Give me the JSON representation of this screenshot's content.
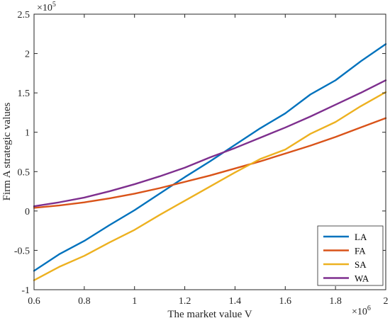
{
  "chart_data": {
    "type": "line",
    "xlabel": "The market value V",
    "ylabel": "Firm A strategic values",
    "x_multiplier": {
      "base": "×10",
      "exponent": "6"
    },
    "y_multiplier": {
      "base": "×10",
      "exponent": "5"
    },
    "xlim": [
      600000,
      2000000
    ],
    "ylim": [
      -100000,
      250000
    ],
    "x_tick_values": [
      600000,
      800000,
      1000000,
      1200000,
      1400000,
      1600000,
      1800000,
      2000000
    ],
    "x_tick_labels": [
      "0.6",
      "0.8",
      "1",
      "1.2",
      "1.4",
      "1.6",
      "1.8",
      "2"
    ],
    "y_tick_values": [
      -100000,
      -50000,
      0,
      50000,
      100000,
      150000,
      200000,
      250000
    ],
    "y_tick_labels": [
      "-1",
      "-0.5",
      "0",
      "0.5",
      "1",
      "1.5",
      "2",
      "2.5"
    ],
    "grid": false,
    "box": true,
    "legend_position": "bottom-right",
    "x": [
      600000,
      700000,
      800000,
      900000,
      1000000,
      1100000,
      1200000,
      1300000,
      1400000,
      1500000,
      1600000,
      1700000,
      1800000,
      1900000,
      2000000
    ],
    "series": [
      {
        "name": "LA",
        "color": "#0072BD",
        "values": [
          -76000,
          -55000,
          -38000,
          -18000,
          1000,
          22000,
          43000,
          63000,
          84000,
          105000,
          124000,
          148000,
          166000,
          190000,
          212000
        ]
      },
      {
        "name": "FA",
        "color": "#D95319",
        "values": [
          4000,
          7000,
          11000,
          16000,
          22000,
          29000,
          37000,
          45000,
          54000,
          63000,
          73000,
          83000,
          94000,
          106000,
          118000
        ]
      },
      {
        "name": "SA",
        "color": "#EDB120",
        "values": [
          -88000,
          -71000,
          -57000,
          -40000,
          -24000,
          -5000,
          13000,
          31000,
          49000,
          66000,
          78000,
          98000,
          113000,
          133000,
          151000
        ]
      },
      {
        "name": "WA",
        "color": "#7E2F8E",
        "values": [
          6000,
          11000,
          17000,
          25000,
          34000,
          44000,
          55000,
          68000,
          80000,
          93000,
          106000,
          120000,
          135000,
          150000,
          166000
        ]
      }
    ]
  }
}
